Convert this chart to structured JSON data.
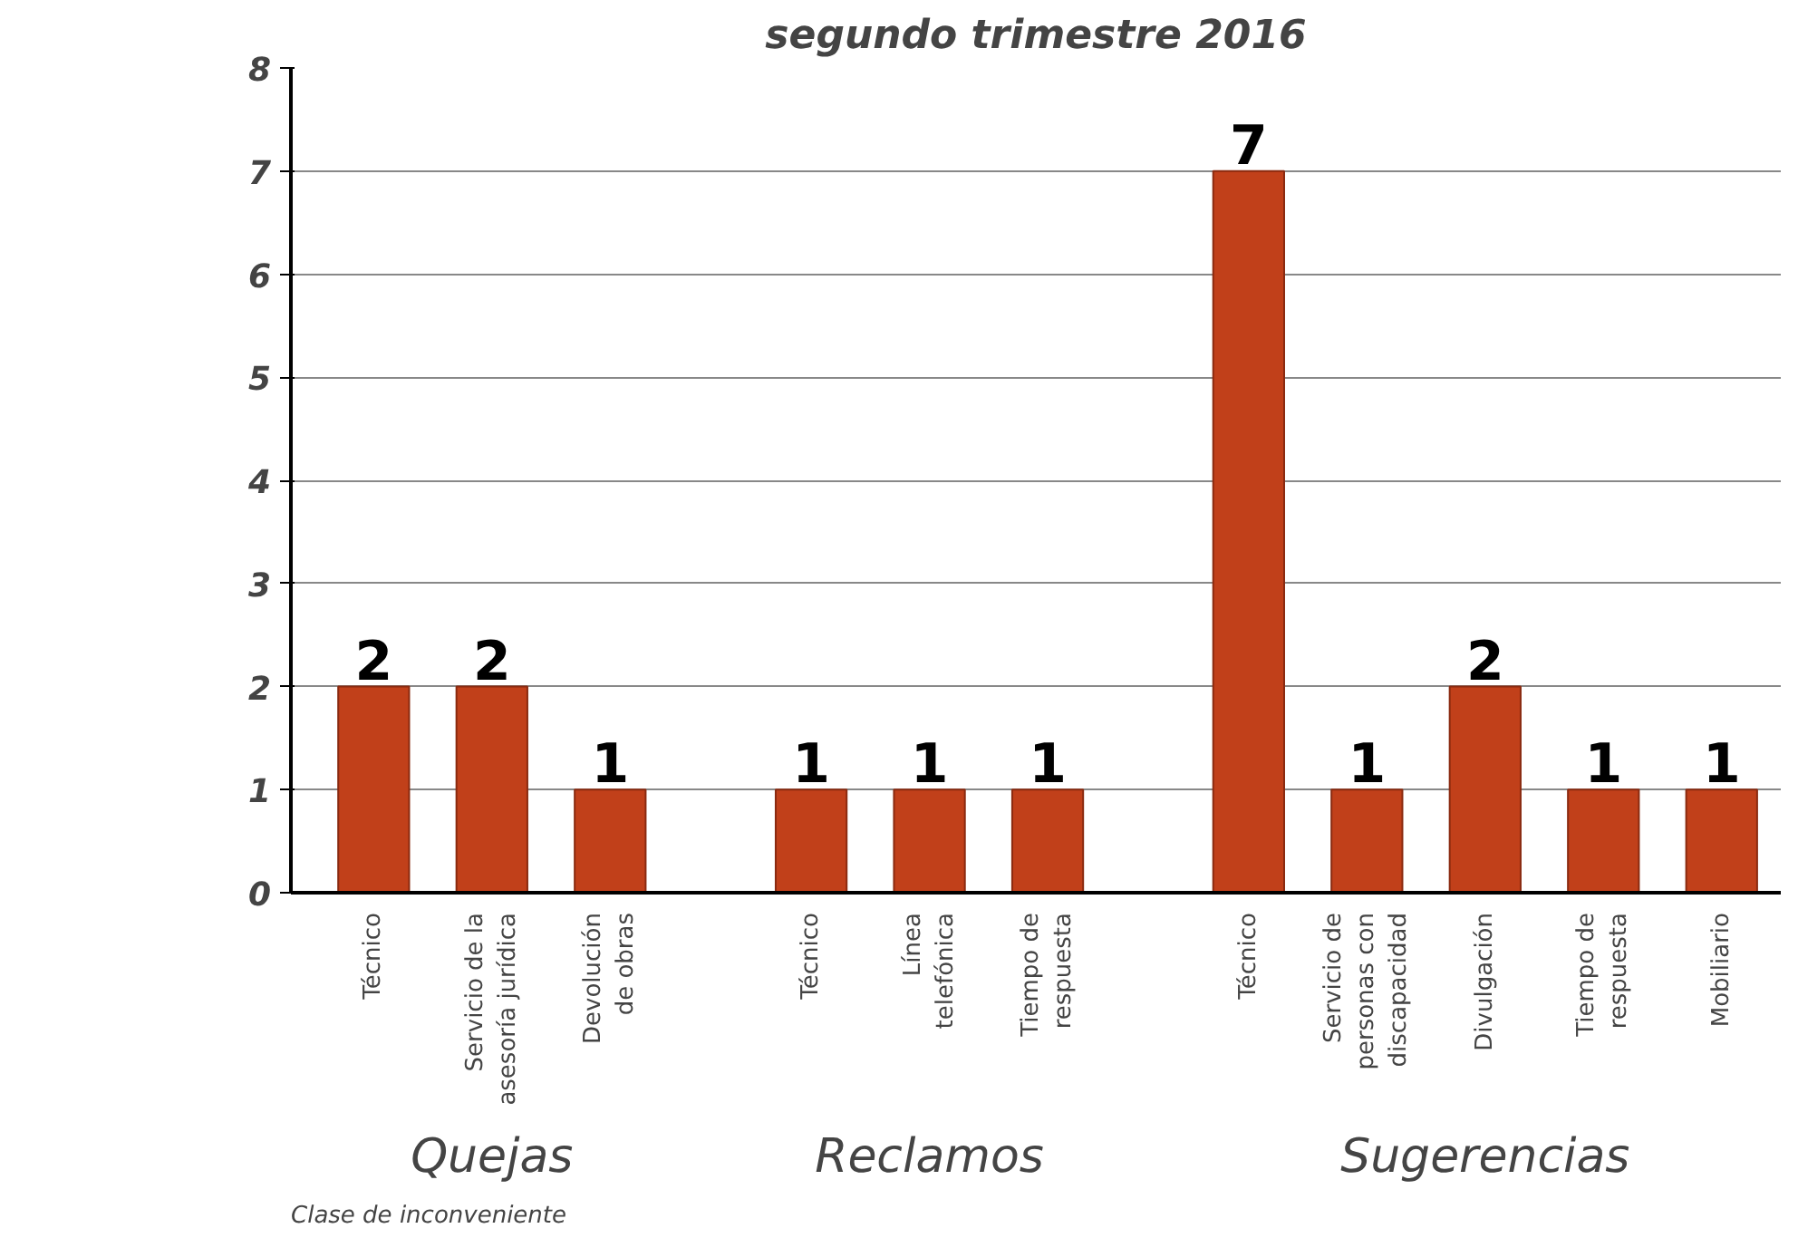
{
  "chart_data": {
    "type": "bar",
    "title": "segundo trimestre 2016",
    "xlabel": "Clase de inconveniente",
    "categories": [
      "Técnico",
      "Servicio de la\nasesoría jurídica",
      "Devolución\nde obras",
      "Técnico",
      "Línea\ntelefónica",
      "Tiempo de\nrespuesta",
      "Técnico",
      "Servicio de\npersonas con\ndiscapacidad",
      "Divulgación",
      "Tiempo de\nrespuesta",
      "Mobiliario"
    ],
    "values": [
      2,
      2,
      1,
      1,
      1,
      1,
      7,
      1,
      2,
      1,
      1
    ],
    "color": "#c1401a",
    "ylim": [
      0,
      8
    ],
    "yticks": [
      0,
      1,
      2,
      3,
      4,
      5,
      6,
      7,
      8
    ],
    "grid": "y",
    "data_labels": true,
    "annotations": [
      "Quejas",
      "Reclamos",
      "Sugerencias"
    ]
  }
}
